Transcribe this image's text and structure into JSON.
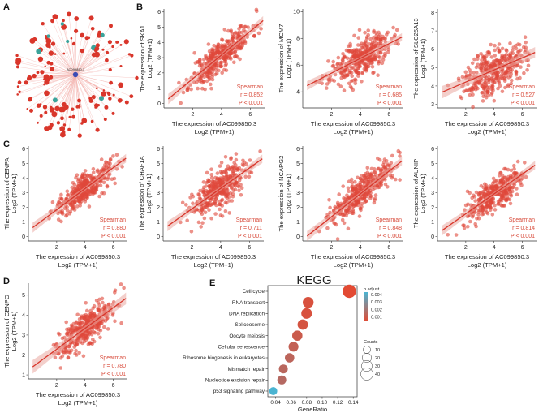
{
  "colors": {
    "point": "#e0483a",
    "point_alpha": 0.6,
    "line": "#d8352a",
    "band": "#e9a8a0",
    "network_node": "#d9362b",
    "network_hub": "#3b4bb5",
    "network_edge": "#f3b6b1",
    "network_teal": "#3aa39a",
    "padj_low": "#e24a33",
    "padj_high": "#4bb4d2"
  },
  "network": {
    "letter": "A",
    "hub_label": "AC099850.3"
  },
  "chart_data": [
    {
      "id": "B1",
      "type": "scatter",
      "letter": "B",
      "ylabel_top": "The expression of SKA1",
      "ylabel_bot": "Log2 (TPM+1)",
      "xlabel_top": "The expression of AC099850.3",
      "xlabel_bot": "Log2 (TPM+1)",
      "xlim": [
        0,
        7
      ],
      "ylim": [
        -0.3,
        6.2
      ],
      "xticks": [
        2,
        4,
        6
      ],
      "yticks": [
        0,
        1,
        2,
        3,
        4,
        5,
        6
      ],
      "fit": {
        "slope": 0.78,
        "intercept": 0.05
      },
      "noise": 0.55,
      "seed": 11,
      "stats": {
        "method": "Spearman",
        "r": "r = 0.852",
        "p": "P < 0.001"
      }
    },
    {
      "id": "B2",
      "type": "scatter",
      "ylabel_top": "The expression of MCM7",
      "ylabel_bot": "Log2 (TPM+1)",
      "xlabel_top": "The expression of AC099850.3",
      "xlabel_bot": "Log2 (TPM+1)",
      "xlim": [
        0,
        7
      ],
      "ylim": [
        2.8,
        10.2
      ],
      "xticks": [
        2,
        4,
        6
      ],
      "yticks": [
        4,
        6,
        8,
        10
      ],
      "fit": {
        "slope": 0.55,
        "intercept": 4.3
      },
      "noise": 0.7,
      "seed": 23,
      "stats": {
        "method": "Spearman",
        "r": "r = 0.685",
        "p": "P < 0.001"
      }
    },
    {
      "id": "B3",
      "type": "scatter",
      "ylabel_top": "The expression of SLC25A13",
      "ylabel_bot": "Log2 (TPM+1)",
      "xlabel_top": "The expression of AC099850.3",
      "xlabel_bot": "Log2 (TPM+1)",
      "xlim": [
        0,
        7
      ],
      "ylim": [
        2.8,
        8.2
      ],
      "xticks": [
        2,
        4,
        6
      ],
      "yticks": [
        3,
        4,
        5,
        6,
        7,
        8
      ],
      "fit": {
        "slope": 0.33,
        "intercept": 3.55
      },
      "noise": 0.6,
      "seed": 37,
      "stats": {
        "method": "Spearman",
        "r": "r = 0.527",
        "p": "P < 0.001"
      }
    },
    {
      "id": "C1",
      "type": "scatter",
      "letter": "C",
      "ylabel_top": "The expression of CENPA",
      "ylabel_bot": "Log2 (TPM+1)",
      "xlabel_top": "The expression of AC099850.3",
      "xlabel_bot": "Log2 (TPM+1)",
      "xlim": [
        0,
        7
      ],
      "ylim": [
        -0.3,
        6.2
      ],
      "xticks": [
        2,
        4,
        6
      ],
      "yticks": [
        0,
        1,
        2,
        3,
        4,
        5,
        6
      ],
      "fit": {
        "slope": 0.72,
        "intercept": 0.4
      },
      "noise": 0.5,
      "seed": 41,
      "stats": {
        "method": "Spearman",
        "r": "r = 0.880",
        "p": "P < 0.001"
      }
    },
    {
      "id": "C2",
      "type": "scatter",
      "ylabel_top": "The expression of CHAF1A",
      "ylabel_bot": "Log2 (TPM+1)",
      "xlabel_top": "The expression of AC099850.3",
      "xlabel_bot": "Log2 (TPM+1)",
      "xlim": [
        0,
        7
      ],
      "ylim": [
        -0.3,
        6.2
      ],
      "xticks": [
        2,
        4,
        6
      ],
      "yticks": [
        0,
        1,
        2,
        3,
        4,
        5,
        6
      ],
      "fit": {
        "slope": 0.7,
        "intercept": 0.5
      },
      "noise": 0.7,
      "seed": 53,
      "stats": {
        "method": "Spearman",
        "r": "r = 0.711",
        "p": "P < 0.001"
      }
    },
    {
      "id": "C3",
      "type": "scatter",
      "ylabel_top": "The expression of NCAPG2",
      "ylabel_bot": "Log2 (TPM+1)",
      "xlabel_top": "The expression of AC099850.3",
      "xlabel_bot": "Log2 (TPM+1)",
      "xlim": [
        0,
        7
      ],
      "ylim": [
        -0.3,
        6.2
      ],
      "xticks": [
        2,
        4,
        6
      ],
      "yticks": [
        0,
        1,
        2,
        3,
        4,
        5,
        6
      ],
      "fit": {
        "slope": 0.78,
        "intercept": -0.2
      },
      "noise": 0.55,
      "seed": 67,
      "stats": {
        "method": "Spearman",
        "r": "r = 0.848",
        "p": "P < 0.001"
      }
    },
    {
      "id": "C4",
      "type": "scatter",
      "ylabel_top": "The expression of AUNIP",
      "ylabel_bot": "Log2 (TPM+1)",
      "xlabel_top": "The expression of AC099850.3",
      "xlabel_bot": "Log2 (TPM+1)",
      "xlim": [
        0,
        7
      ],
      "ylim": [
        -0.3,
        6.2
      ],
      "xticks": [
        2,
        4,
        6
      ],
      "yticks": [
        0,
        1,
        2,
        3,
        4,
        5,
        6
      ],
      "fit": {
        "slope": 0.68,
        "intercept": 0.2
      },
      "noise": 0.55,
      "seed": 79,
      "stats": {
        "method": "Spearman",
        "r": "r = 0.814",
        "p": "P < 0.001"
      }
    },
    {
      "id": "D1",
      "type": "scatter",
      "letter": "D",
      "ylabel_top": "The expression of CENPO",
      "ylabel_bot": "Log2 (TPM+1)",
      "xlabel_top": "The expression of AC099850.3",
      "xlabel_bot": "Log2 (TPM+1)",
      "xlim": [
        0,
        7
      ],
      "ylim": [
        0.8,
        5.6
      ],
      "xticks": [
        2,
        4,
        6
      ],
      "yticks": [
        1,
        2,
        3,
        4,
        5
      ],
      "fit": {
        "slope": 0.52,
        "intercept": 1.25
      },
      "noise": 0.45,
      "seed": 97,
      "stats": {
        "method": "Spearman",
        "r": "r = 0.780",
        "p": "P < 0.001"
      }
    },
    {
      "id": "E",
      "type": "dot",
      "letter": "E",
      "title": "KEGG",
      "xlabel": "GeneRatio",
      "xlim": [
        0.03,
        0.145
      ],
      "xticks": [
        0.04,
        0.06,
        0.08,
        0.1,
        0.12,
        0.14
      ],
      "xtick_labels": [
        "0.04",
        "0.06",
        "0.08",
        "0.10",
        "0.12",
        "0.14"
      ],
      "terms": [
        "Cell cycle",
        "RNA transport",
        "DNA replication",
        "Spliceosome",
        "Oocyte meiosis",
        "Cellular senescence",
        "Ribosome biogenesis in eukaryotes",
        "Mismatch repair",
        "Nucleotide excision repair",
        "p53 signaling pathway"
      ],
      "gene_ratio": [
        0.135,
        0.082,
        0.08,
        0.075,
        0.068,
        0.063,
        0.058,
        0.05,
        0.048,
        0.037
      ],
      "counts": [
        48,
        29,
        28,
        26,
        24,
        22,
        20,
        17,
        17,
        12
      ],
      "p_adjust": [
        0.0001,
        0.0004,
        0.0004,
        0.0005,
        0.0008,
        0.001,
        0.0012,
        0.0013,
        0.0014,
        0.0045
      ],
      "legend_padj_title": "p.adjust",
      "legend_padj_ticks": [
        "0.004",
        "0.003",
        "0.002",
        "0.001"
      ],
      "legend_counts_title": "Counts",
      "legend_counts": [
        10,
        20,
        30,
        40
      ]
    }
  ]
}
